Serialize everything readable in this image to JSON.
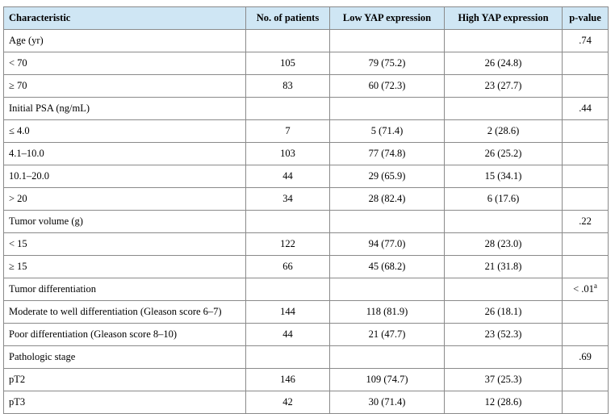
{
  "headers": [
    "Characteristic",
    "No. of patients",
    "Low YAP expression",
    "High YAP expression",
    "p-value"
  ],
  "rows": [
    {
      "characteristic": "Age (yr)",
      "patients": "",
      "low": "",
      "high": "",
      "p": ".74",
      "sup": ""
    },
    {
      "characteristic": "< 70",
      "patients": "105",
      "low": "79 (75.2)",
      "high": "26 (24.8)",
      "p": "",
      "sup": ""
    },
    {
      "characteristic": "≥ 70",
      "patients": "83",
      "low": "60 (72.3)",
      "high": "23 (27.7)",
      "p": "",
      "sup": ""
    },
    {
      "characteristic": "Initial PSA (ng/mL)",
      "patients": "",
      "low": "",
      "high": "",
      "p": ".44",
      "sup": ""
    },
    {
      "characteristic": "≤ 4.0",
      "patients": "7",
      "low": "5 (71.4)",
      "high": "2 (28.6)",
      "p": "",
      "sup": ""
    },
    {
      "characteristic": "4.1–10.0",
      "patients": "103",
      "low": "77 (74.8)",
      "high": "26 (25.2)",
      "p": "",
      "sup": ""
    },
    {
      "characteristic": "10.1–20.0",
      "patients": "44",
      "low": "29 (65.9)",
      "high": "15 (34.1)",
      "p": "",
      "sup": ""
    },
    {
      "characteristic": "> 20",
      "patients": "34",
      "low": "28 (82.4)",
      "high": "6 (17.6)",
      "p": "",
      "sup": ""
    },
    {
      "characteristic": "Tumor volume (g)",
      "patients": "",
      "low": "",
      "high": "",
      "p": ".22",
      "sup": ""
    },
    {
      "characteristic": "< 15",
      "patients": "122",
      "low": "94 (77.0)",
      "high": "28 (23.0)",
      "p": "",
      "sup": ""
    },
    {
      "characteristic": "≥ 15",
      "patients": "66",
      "low": "45 (68.2)",
      "high": "21 (31.8)",
      "p": "",
      "sup": ""
    },
    {
      "characteristic": "Tumor differentiation",
      "patients": "",
      "low": "",
      "high": "",
      "p": "< .01",
      "sup": "a"
    },
    {
      "characteristic": "Moderate to well differentiation (Gleason score 6–7)",
      "patients": "144",
      "low": "118 (81.9)",
      "high": "26 (18.1)",
      "p": "",
      "sup": ""
    },
    {
      "characteristic": "Poor differentiation (Gleason score 8–10)",
      "patients": "44",
      "low": "21 (47.7)",
      "high": "23 (52.3)",
      "p": "",
      "sup": ""
    },
    {
      "characteristic": "Pathologic stage",
      "patients": "",
      "low": "",
      "high": "",
      "p": ".69",
      "sup": ""
    },
    {
      "characteristic": "pT2",
      "patients": "146",
      "low": "109 (74.7)",
      "high": "37 (25.3)",
      "p": "",
      "sup": ""
    },
    {
      "characteristic": "pT3",
      "patients": "42",
      "low": "30 (71.4)",
      "high": "12 (28.6)",
      "p": "",
      "sup": ""
    }
  ],
  "colors": {
    "header_bg": "#cfe6f4",
    "border": "#8a8a8a"
  }
}
